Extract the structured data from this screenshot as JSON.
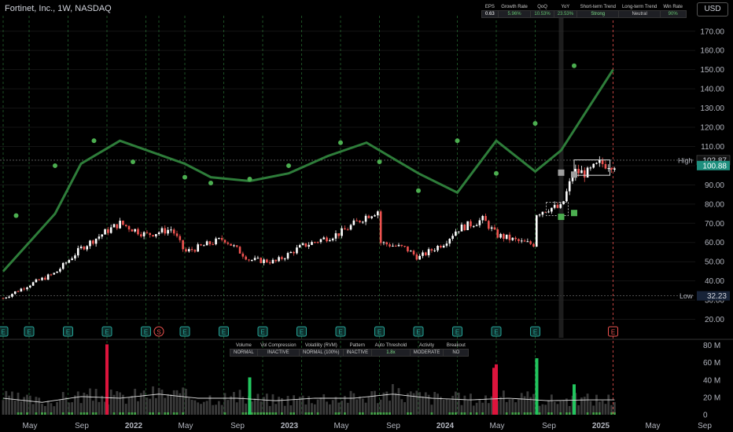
{
  "header": {
    "title": "Fortinet, Inc., 1W, NASDAQ",
    "currency": "USD"
  },
  "stats_table": {
    "headers": [
      "EPS",
      "Growth Rate",
      "QoQ",
      "YoY",
      "Short-term Trend",
      "Long-term Trend",
      "Win Rate"
    ],
    "values": [
      "0.63",
      "5.96%",
      "10.53%",
      "23.53%",
      "Strong",
      "Neutral",
      "90%"
    ]
  },
  "volume_table": {
    "headers": [
      "Volume",
      "Vol Compression",
      "Volatility (RVM)",
      "Pattern",
      "Auto Threshold",
      "Activity",
      "Breakout"
    ],
    "values": [
      "NORMAL",
      "INACTIVE",
      "NORMAL (100%)",
      "INACTIVE",
      "1.8x",
      "MODERATE",
      "NO"
    ]
  },
  "price_labels": {
    "high_label": "High",
    "high_value": "102.87",
    "last_value": "100.88",
    "low_label": "Low",
    "low_value": "32.23"
  },
  "colors": {
    "up": "#26a69a",
    "up_candle": "#ffffff",
    "down": "#ef5350",
    "trend": "#2e7d3a",
    "dots": "#4caf50",
    "volume_up": "#1b5e20",
    "grid": "#1a1a1a",
    "events_line": "#2e7d3a"
  },
  "chart_data": [
    {
      "type": "candlestick",
      "title": "Fortinet, Inc., 1W, NASDAQ",
      "x_tick_labels": [
        "May",
        "Sep",
        "2022",
        "May",
        "Sep",
        "2023",
        "May",
        "Sep",
        "2024",
        "May",
        "Sep",
        "2025",
        "May",
        "Sep"
      ],
      "y_tick_labels": [
        "20.00",
        "30.00",
        "40.00",
        "50.00",
        "60.00",
        "70.00",
        "80.00",
        "90.00",
        "100.00",
        "110.00",
        "120.00",
        "130.00",
        "140.00",
        "150.00",
        "160.00",
        "170.00"
      ],
      "ylim": [
        15,
        175
      ],
      "x_range": [
        "2021-03",
        "2025-10"
      ],
      "price_path": [
        [
          "2021-03",
          31
        ],
        [
          "2021-05",
          38
        ],
        [
          "2021-07",
          44
        ],
        [
          "2021-09",
          57
        ],
        [
          "2021-11",
          66
        ],
        [
          "2021-12",
          70
        ],
        [
          "2022-02",
          64
        ],
        [
          "2022-04",
          67
        ],
        [
          "2022-05",
          55
        ],
        [
          "2022-08",
          62
        ],
        [
          "2022-10",
          51
        ],
        [
          "2022-12",
          50
        ],
        [
          "2023-02",
          58
        ],
        [
          "2023-05",
          65
        ],
        [
          "2023-07",
          74
        ],
        [
          "2023-08",
          77
        ],
        [
          "2023-08",
          60
        ],
        [
          "2023-10",
          57
        ],
        [
          "2023-11",
          52
        ],
        [
          "2024-01",
          60
        ],
        [
          "2024-02",
          67
        ],
        [
          "2024-04",
          72
        ],
        [
          "2024-05",
          64
        ],
        [
          "2024-07",
          60
        ],
        [
          "2024-08",
          59
        ],
        [
          "2024-08",
          75
        ],
        [
          "2024-09",
          78
        ],
        [
          "2024-10",
          78
        ],
        [
          "2024-11",
          97
        ],
        [
          "2024-12",
          96
        ],
        [
          "2025-01",
          101
        ],
        [
          "2025-02",
          100.88
        ]
      ],
      "trend_line": [
        [
          "2021-03",
          45
        ],
        [
          "2021-05",
          60
        ],
        [
          "2021-07",
          75
        ],
        [
          "2021-09",
          101
        ],
        [
          "2021-12",
          113
        ],
        [
          "2022-05",
          101
        ],
        [
          "2022-07",
          94
        ],
        [
          "2022-10",
          92
        ],
        [
          "2023-01",
          96
        ],
        [
          "2023-04",
          105
        ],
        [
          "2023-07",
          112
        ],
        [
          "2023-11",
          96
        ],
        [
          "2024-02",
          86
        ],
        [
          "2024-05",
          113
        ],
        [
          "2024-08",
          97
        ],
        [
          "2024-10",
          108
        ],
        [
          "2025-02",
          150
        ]
      ],
      "earnings_dots": [
        [
          "2021-04",
          74
        ],
        [
          "2021-07",
          100
        ],
        [
          "2021-10",
          113
        ],
        [
          "2022-01",
          102
        ],
        [
          "2022-05",
          94
        ],
        [
          "2022-07",
          91
        ],
        [
          "2022-10",
          93
        ],
        [
          "2023-01",
          100
        ],
        [
          "2023-05",
          112
        ],
        [
          "2023-08",
          102
        ],
        [
          "2023-11",
          87
        ],
        [
          "2024-02",
          113
        ],
        [
          "2024-05",
          96
        ],
        [
          "2024-08",
          122
        ],
        [
          "2024-11",
          152
        ]
      ],
      "earnings_markers": {
        "labels": [
          "E",
          "E",
          "E",
          "E",
          "E",
          "S",
          "E",
          "E",
          "E",
          "E",
          "E",
          "E",
          "E",
          "E",
          "E",
          "E"
        ],
        "dates": [
          "2021-03",
          "2021-05",
          "2021-08",
          "2021-11",
          "2022-02",
          "2022-03",
          "2022-05",
          "2022-08",
          "2022-11",
          "2023-02",
          "2023-05",
          "2023-08",
          "2023-11",
          "2024-02",
          "2024-05",
          "2024-08"
        ],
        "future_label": "E",
        "future_date": "2025-02"
      },
      "high_low": {
        "high": 102.87,
        "low": 32.23,
        "last": 100.88
      }
    },
    {
      "type": "bar",
      "name": "volume",
      "y_tick_labels": [
        "0",
        "20 M",
        "40 M",
        "60 M",
        "80 M"
      ],
      "ylim": [
        0,
        85
      ],
      "volume_path": [
        [
          "2021-03",
          20
        ],
        [
          "2021-06",
          15
        ],
        [
          "2021-09",
          22
        ],
        [
          "2021-12",
          20
        ],
        [
          "2022-03",
          25
        ],
        [
          "2022-06",
          20
        ],
        [
          "2022-09",
          20
        ],
        [
          "2022-12",
          17
        ],
        [
          "2023-03",
          20
        ],
        [
          "2023-06",
          20
        ],
        [
          "2023-09",
          25
        ],
        [
          "2023-12",
          20
        ],
        [
          "2024-03",
          18
        ],
        [
          "2024-06",
          20
        ],
        [
          "2024-09",
          17
        ],
        [
          "2024-12",
          18
        ],
        [
          "2025-02",
          18
        ]
      ],
      "spikes": [
        [
          "2021-11",
          81,
          "down"
        ],
        [
          "2022-10",
          43,
          "up"
        ],
        [
          "2024-05",
          58,
          "down"
        ],
        [
          "2024-05",
          54,
          "down"
        ],
        [
          "2024-08",
          65,
          "up"
        ],
        [
          "2024-11",
          35,
          "up"
        ]
      ]
    }
  ]
}
